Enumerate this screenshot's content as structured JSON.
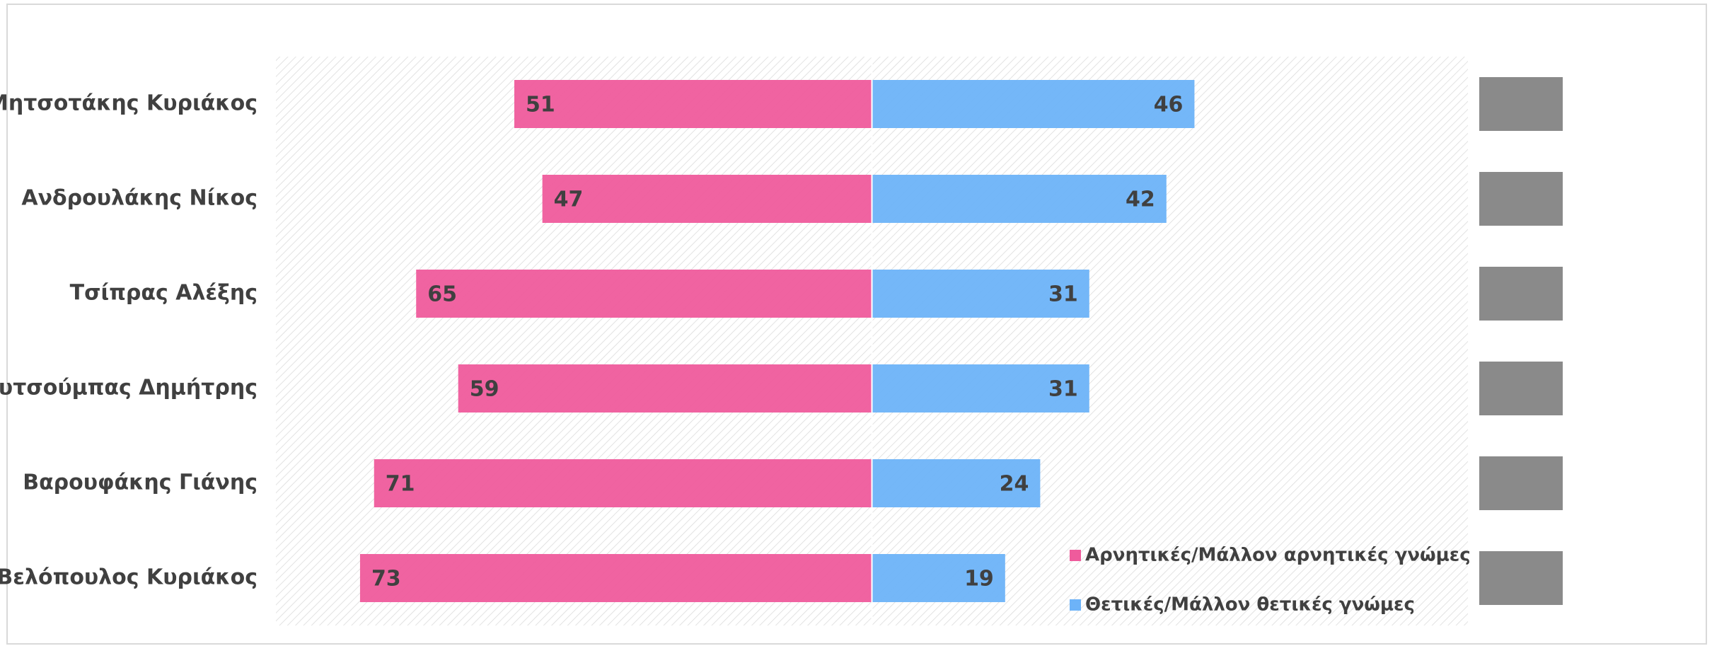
{
  "chart_data": {
    "type": "diverging-bar",
    "categories": [
      "Μητσοτάκης Κυριάκος",
      "Ανδρουλάκης Νίκος",
      "Τσίπρας Αλέξης",
      "Κουτσούμπας Δημήτρης",
      "Βαρουφάκης Γιάνης",
      "Βελόπουλος Κυριάκος"
    ],
    "series": [
      {
        "name": "Αρνητικές/Μάλλον αρνητικές γνώμες",
        "color": "#ef5b9c",
        "values": [
          -51,
          -47,
          -65,
          -59,
          -71,
          -73
        ],
        "value_labels": [
          "51",
          "47",
          "65",
          "59",
          "71",
          "73"
        ]
      },
      {
        "name": "Θετικές/Μάλλον θετικές γνώμες",
        "color": "#6db3f8",
        "values": [
          46,
          42,
          31,
          31,
          24,
          19
        ]
      }
    ],
    "xlim": [
      -85,
      85
    ]
  }
}
